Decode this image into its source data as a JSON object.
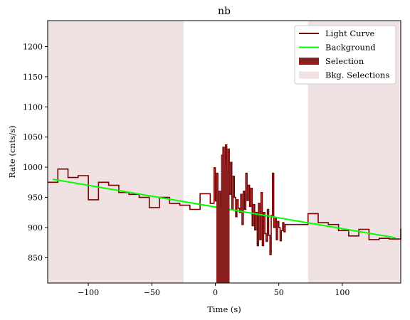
{
  "chart_data": {
    "type": "line",
    "title": "nb",
    "xlabel": "Time (s)",
    "ylabel": "Rate (cnts/s)",
    "xlim": [
      -132,
      146
    ],
    "ylim": [
      808,
      1243
    ],
    "x_ticks": [
      -100,
      -50,
      0,
      50,
      100
    ],
    "x_tick_labels": [
      "−100",
      "−50",
      "0",
      "50",
      "100"
    ],
    "y_ticks": [
      850,
      900,
      950,
      1000,
      1050,
      1100,
      1150,
      1200
    ],
    "y_tick_labels": [
      "850",
      "900",
      "950",
      "1000",
      "1050",
      "1100",
      "1150",
      "1200"
    ],
    "grid": false,
    "legend_position": "top-right",
    "colors": {
      "light_curve": "#7a0000",
      "background": "#00ff00",
      "selection": "#8b2020",
      "bkg_selection": "#f0e2e2"
    },
    "legend": [
      {
        "key": "light_curve",
        "label": "Light Curve"
      },
      {
        "key": "background",
        "label": "Background"
      },
      {
        "key": "selection",
        "label": "Selection"
      },
      {
        "key": "bkg_selection",
        "label": "Bkg. Selections"
      }
    ],
    "series": [
      {
        "name": "Light Curve",
        "style": "step",
        "points": [
          [
            -132,
            975
          ],
          [
            -124,
            997
          ],
          [
            -116,
            983
          ],
          [
            -108,
            986
          ],
          [
            -100,
            946
          ],
          [
            -92,
            975
          ],
          [
            -84,
            970
          ],
          [
            -76,
            958
          ],
          [
            -68,
            955
          ],
          [
            -60,
            950
          ],
          [
            -52,
            933
          ],
          [
            -44,
            950
          ],
          [
            -36,
            940
          ],
          [
            -28,
            937
          ],
          [
            -20,
            930
          ],
          [
            -12,
            956
          ],
          [
            -4,
            940
          ],
          [
            -2,
            940
          ],
          [
            -1,
            999
          ],
          [
            0,
            944
          ],
          [
            1,
            990
          ],
          [
            2,
            940
          ],
          [
            3,
            960
          ],
          [
            4,
            935
          ],
          [
            5,
            1020
          ],
          [
            6,
            1033
          ],
          [
            7,
            1005
          ],
          [
            8,
            1037
          ],
          [
            9,
            990
          ],
          [
            10,
            1030
          ],
          [
            11,
            955
          ],
          [
            12,
            1008
          ],
          [
            13,
            930
          ],
          [
            14,
            985
          ],
          [
            15,
            950
          ],
          [
            16,
            918
          ],
          [
            17,
            946
          ],
          [
            18,
            932
          ],
          [
            19,
            925
          ],
          [
            20,
            955
          ],
          [
            21,
            905
          ],
          [
            22,
            960
          ],
          [
            23,
            930
          ],
          [
            24,
            990
          ],
          [
            25,
            945
          ],
          [
            26,
            970
          ],
          [
            27,
            935
          ],
          [
            28,
            965
          ],
          [
            29,
            903
          ],
          [
            30,
            938
          ],
          [
            31,
            896
          ],
          [
            32,
            925
          ],
          [
            33,
            870
          ],
          [
            34,
            940
          ],
          [
            35,
            880
          ],
          [
            36,
            958
          ],
          [
            37,
            870
          ],
          [
            38,
            925
          ],
          [
            39,
            890
          ],
          [
            40,
            877
          ],
          [
            41,
            930
          ],
          [
            42,
            887
          ],
          [
            43,
            855
          ],
          [
            44,
            920
          ],
          [
            45,
            990
          ],
          [
            46,
            900
          ],
          [
            47,
            915
          ],
          [
            48,
            880
          ],
          [
            49,
            910
          ],
          [
            50,
            900
          ],
          [
            51,
            878
          ],
          [
            52,
            895
          ],
          [
            53,
            908
          ],
          [
            54,
            893
          ],
          [
            55,
            905
          ],
          [
            56,
            905
          ],
          [
            73,
            923
          ],
          [
            81,
            908
          ],
          [
            89,
            905
          ],
          [
            97,
            895
          ],
          [
            105,
            886
          ],
          [
            113,
            897
          ],
          [
            121,
            880
          ],
          [
            129,
            882
          ],
          [
            137,
            881
          ],
          [
            146,
            898
          ]
        ]
      },
      {
        "name": "Background",
        "style": "line",
        "points": [
          [
            -128,
            980
          ],
          [
            142,
            883
          ]
        ]
      }
    ],
    "selection": [
      [
        0.8,
        11.2
      ]
    ],
    "bkg_selections": [
      [
        -132,
        -25
      ],
      [
        73,
        146
      ]
    ]
  }
}
